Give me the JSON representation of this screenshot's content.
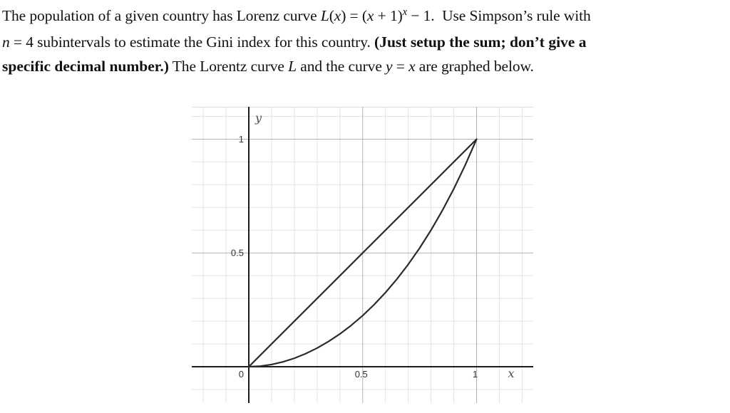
{
  "problem": {
    "lines": [
      {
        "segments": [
          {
            "t": "The population of a given country has Lorenz curve ",
            "s": "rm"
          },
          {
            "t": "L",
            "s": "it"
          },
          {
            "t": "(",
            "s": "rm"
          },
          {
            "t": "x",
            "s": "it"
          },
          {
            "t": ") = (",
            "s": "rm"
          },
          {
            "t": "x",
            "s": "it"
          },
          {
            "t": " + 1)",
            "s": "rm"
          },
          {
            "t": "x",
            "s": "sup"
          },
          {
            "t": " − 1.  Use Simpson’s rule with",
            "s": "rm"
          }
        ]
      },
      {
        "segments": [
          {
            "t": "n",
            "s": "it"
          },
          {
            "t": " = 4 subintervals to estimate the Gini index for this country. ",
            "s": "rm"
          },
          {
            "t": "(Just setup the sum; don’t give a",
            "s": "b"
          }
        ]
      },
      {
        "segments": [
          {
            "t": "specific decimal number.)",
            "s": "b"
          },
          {
            "t": " The Lorentz curve ",
            "s": "rm"
          },
          {
            "t": "L",
            "s": "it"
          },
          {
            "t": " and the curve ",
            "s": "rm"
          },
          {
            "t": "y",
            "s": "it"
          },
          {
            "t": " = ",
            "s": "rm"
          },
          {
            "t": "x",
            "s": "it"
          },
          {
            "t": " are graphed below.",
            "s": "rm"
          }
        ]
      }
    ]
  },
  "chart_data": {
    "type": "line",
    "title": "",
    "xlabel": "x",
    "ylabel": "y",
    "xlim": [
      -0.2504,
      1.2488
    ],
    "ylim": [
      -0.1597,
      1.1424
    ],
    "grid": {
      "minor_step": 0.1,
      "major_step": 0.5,
      "grid_on": true
    },
    "x_ticks": [
      {
        "v": 0,
        "label": "0"
      },
      {
        "v": 0.5,
        "label": "0.5"
      },
      {
        "v": 1,
        "label": "1"
      }
    ],
    "y_ticks": [
      {
        "v": 0.5,
        "label": "0.5"
      },
      {
        "v": 1,
        "label": "1"
      }
    ],
    "series": [
      {
        "name": "y = x",
        "points": [
          [
            0,
            0
          ],
          [
            1,
            1
          ]
        ]
      },
      {
        "name": "L(x) = (x+1)^x − 1",
        "points": [
          [
            0,
            0
          ],
          [
            0.05,
            0.0024
          ],
          [
            0.1,
            0.0096
          ],
          [
            0.15,
            0.0212
          ],
          [
            0.2,
            0.0371
          ],
          [
            0.25,
            0.0574
          ],
          [
            0.3,
            0.0819
          ],
          [
            0.35,
            0.1108
          ],
          [
            0.4,
            0.1441
          ],
          [
            0.45,
            0.182
          ],
          [
            0.5,
            0.2247
          ],
          [
            0.55,
            0.2726
          ],
          [
            0.6,
            0.3258
          ],
          [
            0.65,
            0.3847
          ],
          [
            0.7,
            0.4498
          ],
          [
            0.75,
            0.5215
          ],
          [
            0.8,
            0.6004
          ],
          [
            0.85,
            0.687
          ],
          [
            0.9,
            0.7819
          ],
          [
            0.95,
            0.8859
          ],
          [
            1,
            1
          ]
        ]
      }
    ],
    "colors": {
      "curve": "#2b2b2b",
      "axis": "#1c1c1c",
      "grid_major": "#b2b2b2",
      "grid_minor": "#e4e4e4",
      "edge": "#dedede",
      "tick_text": "#333333",
      "axis_label": "#4d4d4d"
    }
  }
}
